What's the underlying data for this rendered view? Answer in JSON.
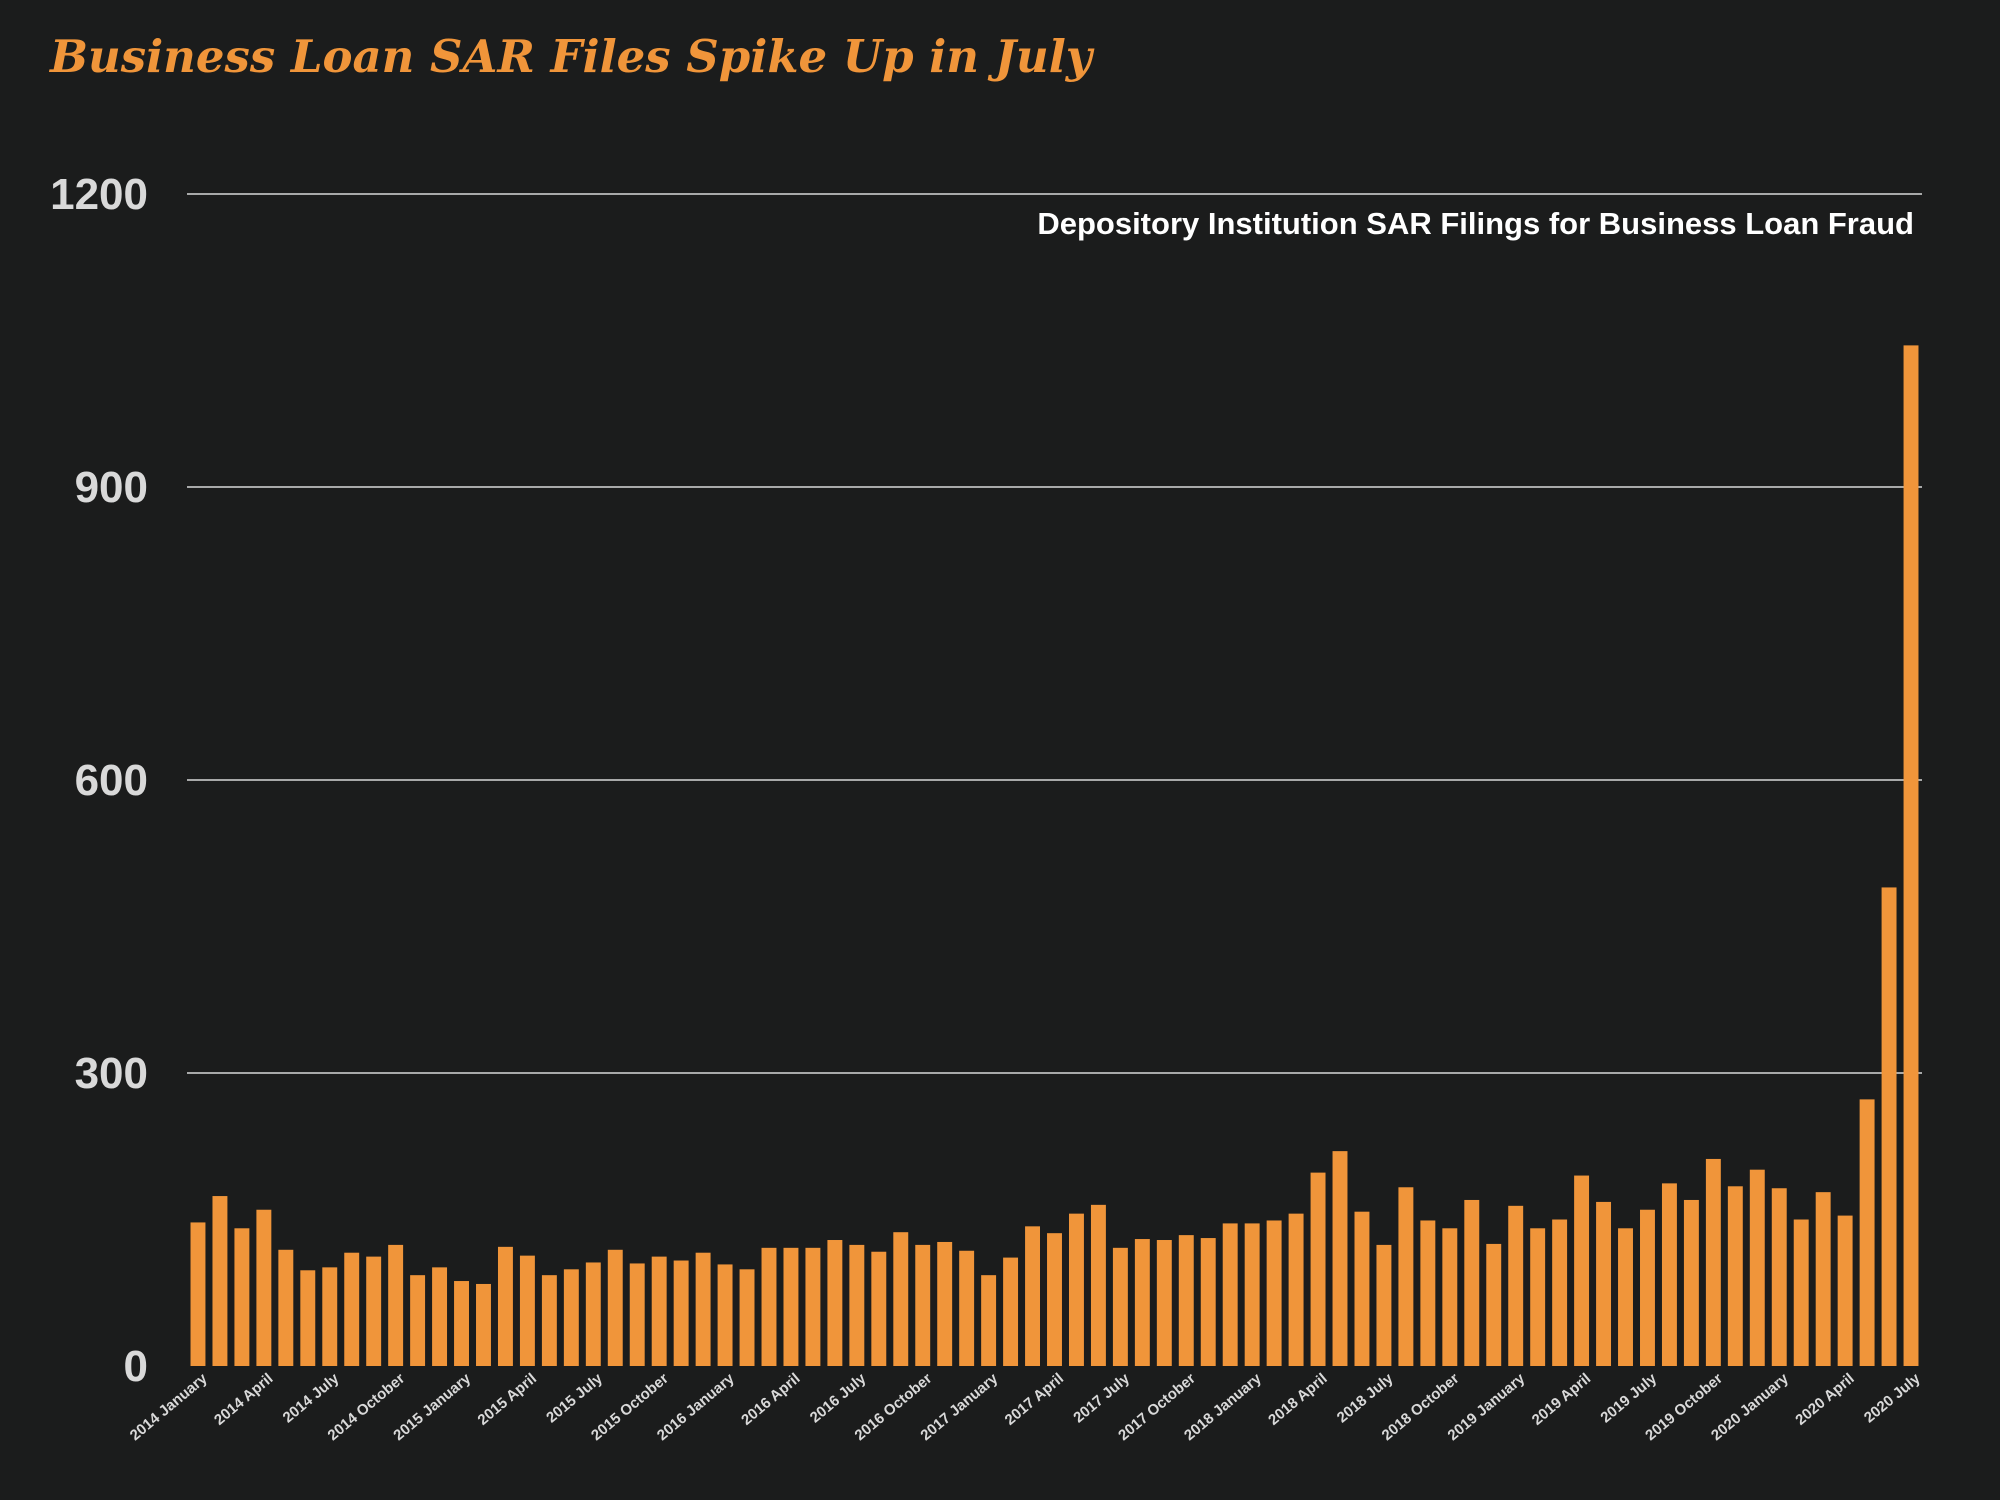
{
  "chart_data": {
    "type": "bar",
    "title": "Business Loan SAR Files Spike Up in July",
    "subtitle": "Depository Institution SAR Filings for Business Loan Fraud",
    "xlabel": "",
    "ylabel": "",
    "ylim": [
      0,
      1200
    ],
    "yticks": [
      0,
      300,
      600,
      900,
      1200
    ],
    "grid": true,
    "legend": "none",
    "colors": {
      "bar": "#f0953a",
      "background": "#1b1c1c",
      "grid": "#d8d8d8",
      "tick_text": "#d9d9d9",
      "subtitle": "#ffffff"
    },
    "categories": [
      "2014 January",
      "2014 February",
      "2014 March",
      "2014 April",
      "2014 May",
      "2014 June",
      "2014 July",
      "2014 August",
      "2014 September",
      "2014 October",
      "2014 November",
      "2014 December",
      "2015 January",
      "2015 February",
      "2015 March",
      "2015 April",
      "2015 May",
      "2015 June",
      "2015 July",
      "2015 August",
      "2015 September",
      "2015 October",
      "2015 November",
      "2015 December",
      "2016 January",
      "2016 February",
      "2016 March",
      "2016 April",
      "2016 May",
      "2016 June",
      "2016 July",
      "2016 August",
      "2016 September",
      "2016 October",
      "2016 November",
      "2016 December",
      "2017 January",
      "2017 February",
      "2017 March",
      "2017 April",
      "2017 May",
      "2017 June",
      "2017 July",
      "2017 August",
      "2017 September",
      "2017 October",
      "2017 November",
      "2017 December",
      "2018 January",
      "2018 February",
      "2018 March",
      "2018 April",
      "2018 May",
      "2018 June",
      "2018 July",
      "2018 August",
      "2018 September",
      "2018 October",
      "2018 November",
      "2018 December",
      "2019 January",
      "2019 February",
      "2019 March",
      "2019 April",
      "2019 May",
      "2019 June",
      "2019 July",
      "2019 August",
      "2019 September",
      "2019 October",
      "2019 November",
      "2019 December",
      "2020 January",
      "2020 February",
      "2020 March",
      "2020 April",
      "2020 May",
      "2020 June",
      "2020 July"
    ],
    "values": [
      147,
      174,
      141,
      160,
      119,
      98,
      101,
      116,
      112,
      124,
      93,
      101,
      87,
      84,
      122,
      113,
      93,
      99,
      106,
      119,
      105,
      112,
      108,
      116,
      104,
      99,
      121,
      121,
      121,
      129,
      124,
      117,
      137,
      124,
      127,
      118,
      93,
      111,
      143,
      136,
      156,
      165,
      121,
      130,
      129,
      134,
      131,
      146,
      146,
      149,
      156,
      198,
      220,
      158,
      124,
      183,
      149,
      141,
      170,
      125,
      164,
      141,
      150,
      195,
      168,
      141,
      160,
      187,
      170,
      212,
      184,
      201,
      182,
      150,
      178,
      154,
      273,
      490,
      1045
    ],
    "x_tick_labels": [
      "2014 January",
      "2014 April",
      "2014 July",
      "2014 October",
      "2015 January",
      "2015 April",
      "2015 July",
      "2015 October",
      "2016 January",
      "2016 April",
      "2016 July",
      "2016 October",
      "2017 January",
      "2017 April",
      "2017 July",
      "2017 October",
      "2018 January",
      "2018 April",
      "2018 July",
      "2018 October",
      "2019 January",
      "2019 April",
      "2019 July",
      "2019 October",
      "2020 January",
      "2020 April",
      "2020 July"
    ]
  }
}
